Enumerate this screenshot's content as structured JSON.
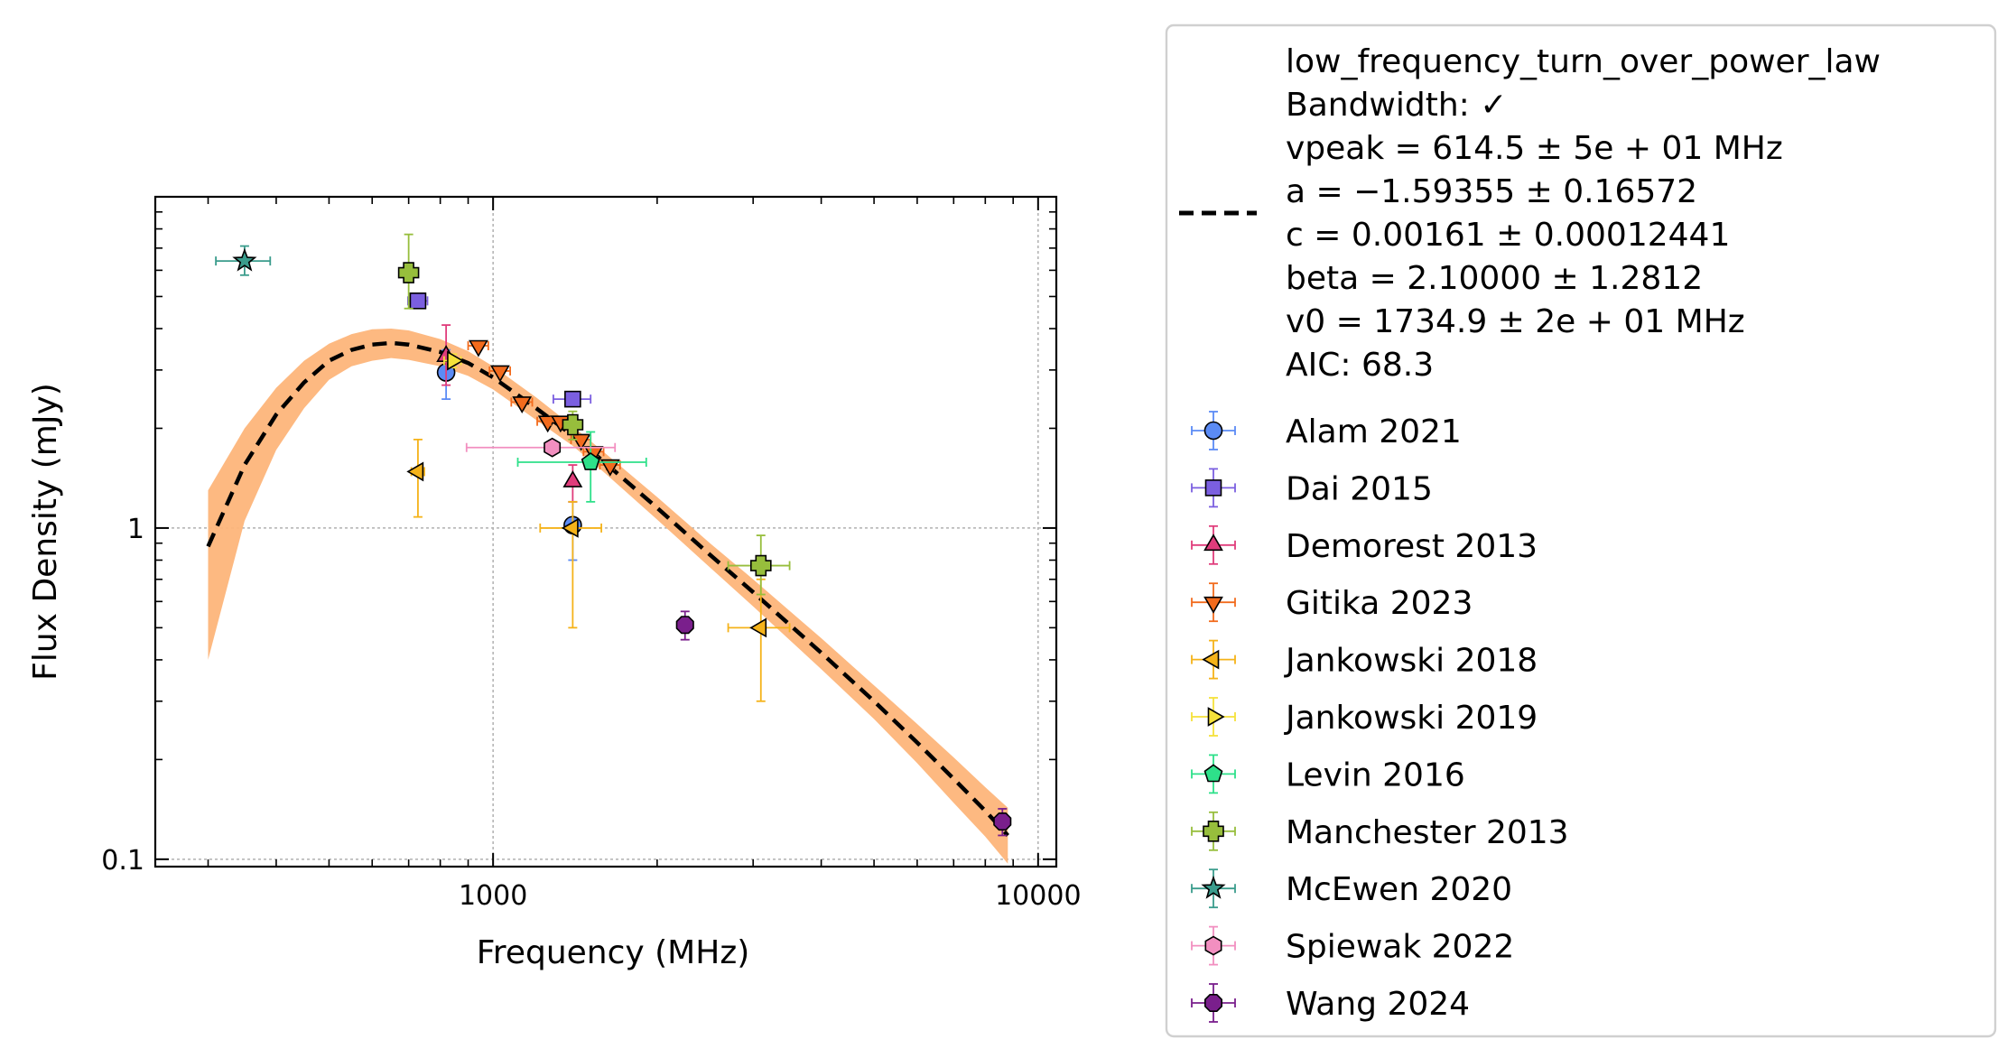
{
  "chart_data": {
    "type": "scatter",
    "title": "",
    "xlabel": "Frequency (MHz)",
    "ylabel": "Flux Density (mJy)",
    "xscale": "log",
    "yscale": "log",
    "xlim": [
      240,
      10800
    ],
    "ylim": [
      0.095,
      10
    ],
    "xticks": [
      {
        "value": 1000,
        "label": "1000"
      },
      {
        "value": 10000,
        "label": "10000"
      }
    ],
    "yticks": [
      {
        "value": 0.1,
        "label": "0.1"
      },
      {
        "value": 1,
        "label": "1"
      }
    ],
    "grid": true,
    "legend_position": "outside-right",
    "fit": {
      "name": "low_frequency_turn_over_power_law",
      "legend_lines": [
        "low_frequency_turn_over_power_law",
        "Bandwidth: ✓",
        "vpeak = 614.5 ± 5e + 01 MHz",
        "a = −1.59355 ± 0.16572",
        "c = 0.00161 ± 0.00012441",
        "beta = 2.10000 ± 1.2812",
        "v0 = 1734.9 ± 2e + 01 MHz",
        "AIC: 68.3"
      ],
      "curve": [
        [
          300,
          0.88
        ],
        [
          350,
          1.55
        ],
        [
          400,
          2.2
        ],
        [
          450,
          2.75
        ],
        [
          500,
          3.2
        ],
        [
          550,
          3.45
        ],
        [
          600,
          3.58
        ],
        [
          650,
          3.62
        ],
        [
          700,
          3.58
        ],
        [
          800,
          3.4
        ],
        [
          900,
          3.15
        ],
        [
          1000,
          2.85
        ],
        [
          1200,
          2.3
        ],
        [
          1400,
          1.9
        ],
        [
          1600,
          1.58
        ],
        [
          2000,
          1.15
        ],
        [
          2500,
          0.83
        ],
        [
          3000,
          0.64
        ],
        [
          4000,
          0.42
        ],
        [
          5000,
          0.3
        ],
        [
          6000,
          0.225
        ],
        [
          7000,
          0.175
        ],
        [
          8000,
          0.14
        ],
        [
          8800,
          0.118
        ]
      ],
      "band_upper": [
        [
          300,
          1.3
        ],
        [
          350,
          2.0
        ],
        [
          400,
          2.65
        ],
        [
          450,
          3.2
        ],
        [
          500,
          3.6
        ],
        [
          550,
          3.85
        ],
        [
          600,
          3.98
        ],
        [
          650,
          4.0
        ],
        [
          700,
          3.95
        ],
        [
          800,
          3.72
        ],
        [
          900,
          3.42
        ],
        [
          1000,
          3.08
        ],
        [
          1200,
          2.48
        ],
        [
          1400,
          2.03
        ],
        [
          1600,
          1.69
        ],
        [
          2000,
          1.24
        ],
        [
          2500,
          0.9
        ],
        [
          3000,
          0.7
        ],
        [
          4000,
          0.465
        ],
        [
          5000,
          0.335
        ],
        [
          6000,
          0.256
        ],
        [
          7000,
          0.203
        ],
        [
          8000,
          0.165
        ],
        [
          8800,
          0.143
        ]
      ],
      "band_lower": [
        [
          300,
          0.4
        ],
        [
          350,
          1.05
        ],
        [
          400,
          1.72
        ],
        [
          450,
          2.3
        ],
        [
          500,
          2.8
        ],
        [
          550,
          3.08
        ],
        [
          600,
          3.2
        ],
        [
          650,
          3.26
        ],
        [
          700,
          3.22
        ],
        [
          800,
          3.08
        ],
        [
          900,
          2.88
        ],
        [
          1000,
          2.62
        ],
        [
          1200,
          2.12
        ],
        [
          1400,
          1.77
        ],
        [
          1600,
          1.47
        ],
        [
          2000,
          1.06
        ],
        [
          2500,
          0.76
        ],
        [
          3000,
          0.58
        ],
        [
          4000,
          0.375
        ],
        [
          5000,
          0.265
        ],
        [
          6000,
          0.195
        ],
        [
          7000,
          0.148
        ],
        [
          8000,
          0.117
        ],
        [
          8800,
          0.097
        ]
      ],
      "color": "#000000",
      "band_color": "#fdb57a"
    },
    "series": [
      {
        "name": "Alam 2021",
        "marker": "circle",
        "color": "#5b8bf5",
        "err_color": "#5b8bf5",
        "points": [
          {
            "x": 820,
            "y": 2.95,
            "xerr_lo": 0,
            "xerr_hi": 0,
            "y_lo": 2.45,
            "y_hi": 3.45
          },
          {
            "x": 1400,
            "y": 1.02,
            "xerr_lo": 0,
            "xerr_hi": 0,
            "y_lo": 0.8,
            "y_hi": 1.2
          }
        ]
      },
      {
        "name": "Dai 2015",
        "marker": "square",
        "color": "#7b5fe0",
        "err_color": "#7b5fe0",
        "points": [
          {
            "x": 728,
            "y": 4.85,
            "xerr_lo": 30,
            "xerr_hi": 30,
            "y_lo": 4.75,
            "y_hi": 4.95
          },
          {
            "x": 1400,
            "y": 2.45,
            "xerr_lo": 110,
            "xerr_hi": 110,
            "y_lo": 2.38,
            "y_hi": 2.52
          }
        ]
      },
      {
        "name": "Demorest 2013",
        "marker": "triangle-up",
        "color": "#e03c7b",
        "err_color": "#e03c7b",
        "points": [
          {
            "x": 820,
            "y": 3.3,
            "xerr_lo": 0,
            "xerr_hi": 0,
            "y_lo": 2.7,
            "y_hi": 4.1
          },
          {
            "x": 1400,
            "y": 1.38,
            "xerr_lo": 0,
            "xerr_hi": 0,
            "y_lo": 1.2,
            "y_hi": 1.55
          }
        ]
      },
      {
        "name": "Gitika 2023",
        "marker": "triangle-down",
        "color": "#f26b1d",
        "err_color": "#f26b1d",
        "points": [
          {
            "x": 940,
            "y": 3.55,
            "xerr_lo": 40,
            "xerr_hi": 40,
            "y_lo": 3.5,
            "y_hi": 3.6
          },
          {
            "x": 1030,
            "y": 2.98,
            "xerr_lo": 45,
            "xerr_hi": 45,
            "y_lo": 2.93,
            "y_hi": 3.03
          },
          {
            "x": 1130,
            "y": 2.4,
            "xerr_lo": 50,
            "xerr_hi": 50,
            "y_lo": 2.35,
            "y_hi": 2.45
          },
          {
            "x": 1260,
            "y": 2.1,
            "xerr_lo": 55,
            "xerr_hi": 55,
            "y_lo": 2.05,
            "y_hi": 2.15
          },
          {
            "x": 1330,
            "y": 2.1,
            "xerr_lo": 55,
            "xerr_hi": 55,
            "y_lo": 2.05,
            "y_hi": 2.15
          },
          {
            "x": 1450,
            "y": 1.85,
            "xerr_lo": 60,
            "xerr_hi": 60,
            "y_lo": 1.8,
            "y_hi": 1.9
          },
          {
            "x": 1530,
            "y": 1.7,
            "xerr_lo": 65,
            "xerr_hi": 65,
            "y_lo": 1.65,
            "y_hi": 1.75
          },
          {
            "x": 1640,
            "y": 1.55,
            "xerr_lo": 70,
            "xerr_hi": 70,
            "y_lo": 1.5,
            "y_hi": 1.6
          }
        ]
      },
      {
        "name": "Jankowski 2018",
        "marker": "triangle-left",
        "color": "#f5b31a",
        "err_color": "#f5b31a",
        "points": [
          {
            "x": 728,
            "y": 1.48,
            "xerr_lo": 20,
            "xerr_hi": 20,
            "y_lo": 1.08,
            "y_hi": 1.85
          },
          {
            "x": 1400,
            "y": 1.0,
            "xerr_lo": 180,
            "xerr_hi": 180,
            "y_lo": 0.5,
            "y_hi": 1.2
          },
          {
            "x": 3100,
            "y": 0.5,
            "xerr_lo": 400,
            "xerr_hi": 400,
            "y_lo": 0.3,
            "y_hi": 0.7
          }
        ]
      },
      {
        "name": "Jankowski 2019",
        "marker": "triangle-right",
        "color": "#f5e13a",
        "err_color": "#f5e13a",
        "points": [
          {
            "x": 843,
            "y": 3.2,
            "xerr_lo": 30,
            "xerr_hi": 30,
            "y_lo": 3.05,
            "y_hi": 3.35
          }
        ]
      },
      {
        "name": "Levin 2016",
        "marker": "pentagon",
        "color": "#2ee08a",
        "err_color": "#2ee08a",
        "points": [
          {
            "x": 1510,
            "y": 1.58,
            "xerr_lo": 400,
            "xerr_hi": 400,
            "y_lo": 1.2,
            "y_hi": 1.95
          }
        ]
      },
      {
        "name": "Manchester 2013",
        "marker": "plus",
        "color": "#97be3c",
        "err_color": "#97be3c",
        "points": [
          {
            "x": 700,
            "y": 5.9,
            "xerr_lo": 20,
            "xerr_hi": 20,
            "y_lo": 4.6,
            "y_hi": 7.7
          },
          {
            "x": 1400,
            "y": 2.05,
            "xerr_lo": 50,
            "xerr_hi": 50,
            "y_lo": 1.85,
            "y_hi": 2.25
          },
          {
            "x": 3100,
            "y": 0.77,
            "xerr_lo": 400,
            "xerr_hi": 400,
            "y_lo": 0.63,
            "y_hi": 0.95
          }
        ]
      },
      {
        "name": "McEwen 2020",
        "marker": "star",
        "color": "#3a9c8c",
        "err_color": "#3a9c8c",
        "points": [
          {
            "x": 350,
            "y": 6.4,
            "xerr_lo": 40,
            "xerr_hi": 40,
            "y_lo": 5.8,
            "y_hi": 7.1
          }
        ]
      },
      {
        "name": "Spiewak 2022",
        "marker": "hexagon",
        "color": "#f28fc0",
        "err_color": "#f28fc0",
        "points": [
          {
            "x": 1284,
            "y": 1.75,
            "xerr_lo": 390,
            "xerr_hi": 390,
            "y_lo": 1.7,
            "y_hi": 1.8
          }
        ]
      },
      {
        "name": "Wang 2024",
        "marker": "octagon",
        "color": "#7a1f8c",
        "err_color": "#7a1f8c",
        "points": [
          {
            "x": 2250,
            "y": 0.51,
            "xerr_lo": 0,
            "xerr_hi": 0,
            "y_lo": 0.46,
            "y_hi": 0.56
          },
          {
            "x": 8600,
            "y": 0.13,
            "xerr_lo": 200,
            "xerr_hi": 200,
            "y_lo": 0.118,
            "y_hi": 0.142
          }
        ]
      }
    ]
  }
}
